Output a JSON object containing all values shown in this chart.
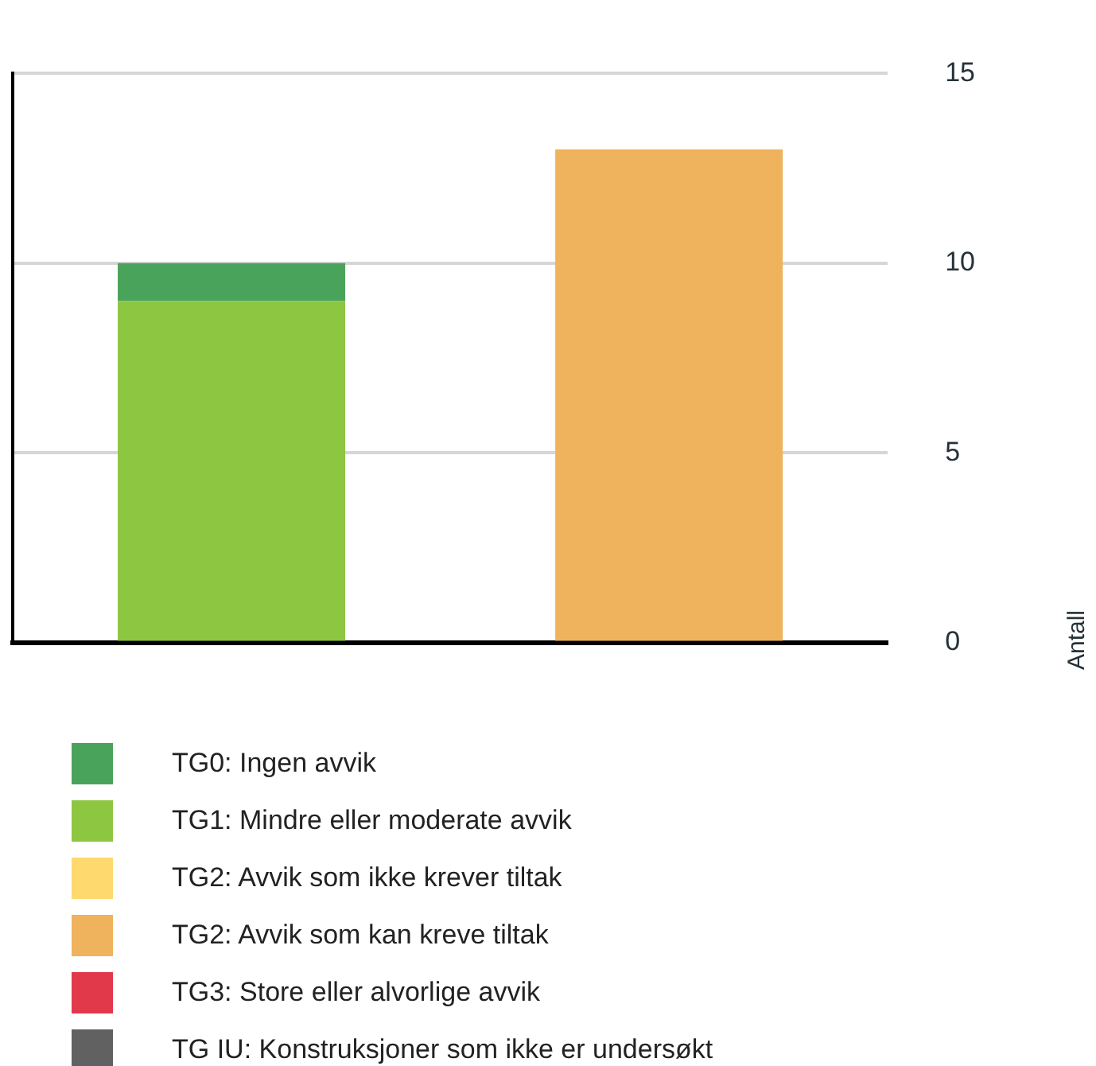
{
  "chart_data": {
    "type": "bar",
    "stacked": true,
    "categories": [
      null,
      null
    ],
    "ylabel": "Antall",
    "ylim": [
      0,
      15
    ],
    "yticks": [
      0,
      5,
      10,
      15
    ],
    "grid": "y",
    "legend": "bottom",
    "series": [
      {
        "name": "TG IU: Konstruksjoner som ikke er undersøkt",
        "color": "#616161",
        "values": [
          0,
          0
        ]
      },
      {
        "name": "TG3: Store eller alvorlige avvik",
        "color": "#e2394a",
        "values": [
          0,
          0
        ]
      },
      {
        "name": "TG2: Avvik som kan kreve tiltak",
        "color": "#eeb35c",
        "values": [
          0,
          13
        ]
      },
      {
        "name": "TG2: Avvik som ikke krever tiltak",
        "color": "#fdd96e",
        "values": [
          0,
          0
        ]
      },
      {
        "name": "TG1: Mindre eller moderate avvik",
        "color": "#8dc641",
        "values": [
          9,
          0
        ]
      },
      {
        "name": "TG0: Ingen avvik",
        "color": "#4aa35a",
        "values": [
          1,
          0
        ]
      }
    ]
  }
}
